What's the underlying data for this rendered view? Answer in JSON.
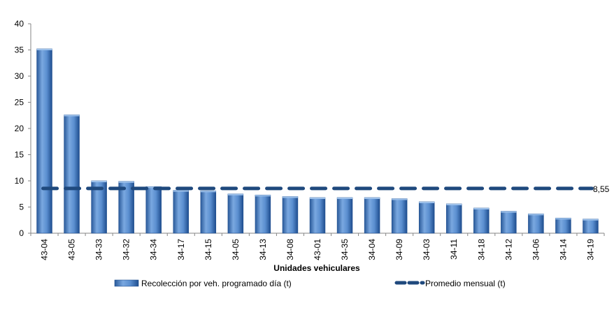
{
  "chart_data": {
    "type": "bar",
    "xlabel": "Unidades vehiculares",
    "ylabel": "",
    "ylim": [
      0,
      40
    ],
    "yticks": [
      0,
      5,
      10,
      15,
      20,
      25,
      30,
      35,
      40
    ],
    "grid": false,
    "legend_position": "bottom",
    "categories": [
      "43-04",
      "43-05",
      "34-33",
      "34-32",
      "34-34",
      "34-17",
      "34-15",
      "34-05",
      "34-13",
      "34-08",
      "43-01",
      "34-35",
      "34-04",
      "34-09",
      "34-03",
      "34-11",
      "34-18",
      "34-12",
      "34-06",
      "34-14",
      "34-19"
    ],
    "series": [
      {
        "name": "Recolección por veh. programado día (t)",
        "type": "bar",
        "color": "#4f81bd",
        "values": [
          35.2,
          22.6,
          10.0,
          9.9,
          8.9,
          8.2,
          8.1,
          7.5,
          7.3,
          7.0,
          6.8,
          6.8,
          6.8,
          6.6,
          6.0,
          5.6,
          4.8,
          4.2,
          3.7,
          2.9,
          2.7
        ]
      },
      {
        "name": "Promedio mensual (t)",
        "type": "line",
        "style": "dashed",
        "color": "#1f497d",
        "value": 8.55,
        "label": "8,55"
      }
    ]
  }
}
